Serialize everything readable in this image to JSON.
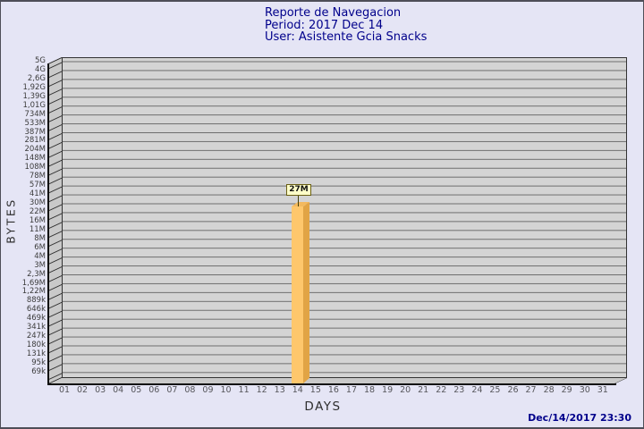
{
  "header": {
    "title": "Reporte de Navegacion",
    "period": "Period: 2017 Dec 14",
    "user": "User: Asistente Gcia Snacks"
  },
  "footer": {
    "timestamp": "Dec/14/2017 23:30"
  },
  "chart_data": {
    "type": "bar",
    "title": "Reporte de Navegacion",
    "xlabel": "DAYS",
    "ylabel": "BYTES",
    "scale": "logarithmic",
    "categories": [
      "01",
      "02",
      "03",
      "04",
      "05",
      "06",
      "07",
      "08",
      "09",
      "10",
      "11",
      "12",
      "13",
      "14",
      "15",
      "16",
      "17",
      "18",
      "19",
      "20",
      "21",
      "22",
      "23",
      "24",
      "25",
      "26",
      "27",
      "28",
      "29",
      "30",
      "31"
    ],
    "values": [
      0,
      0,
      0,
      0,
      0,
      0,
      0,
      0,
      0,
      0,
      0,
      0,
      0,
      27000000,
      0,
      0,
      0,
      0,
      0,
      0,
      0,
      0,
      0,
      0,
      0,
      0,
      0,
      0,
      0,
      0,
      0
    ],
    "bar_label": "27M",
    "bar_day": "14",
    "ytick_labels": [
      "5G",
      "4G",
      "2,6G",
      "1,92G",
      "1,39G",
      "1,01G",
      "734M",
      "533M",
      "387M",
      "281M",
      "204M",
      "148M",
      "108M",
      "78M",
      "57M",
      "41M",
      "30M",
      "22M",
      "16M",
      "11M",
      "8M",
      "6M",
      "4M",
      "3M",
      "2,3M",
      "1,69M",
      "1,22M",
      "889k",
      "646k",
      "469k",
      "341k",
      "247k",
      "180k",
      "131k",
      "95k",
      "69k"
    ],
    "ylim": [
      "69k",
      "5G"
    ],
    "grid": "horizontal",
    "legend": "none",
    "colors": {
      "bar_front": "#FEC76C",
      "bar_side": "#E1A445",
      "bar_top": "#F3B95E",
      "flag_background": "#FFFFC9",
      "flag_border": "#6b6014",
      "plot_background": "#d4d4d4",
      "gridline": "#6e6e6e",
      "page_background": "#E5E5F5",
      "title_text": "#00008B"
    }
  }
}
